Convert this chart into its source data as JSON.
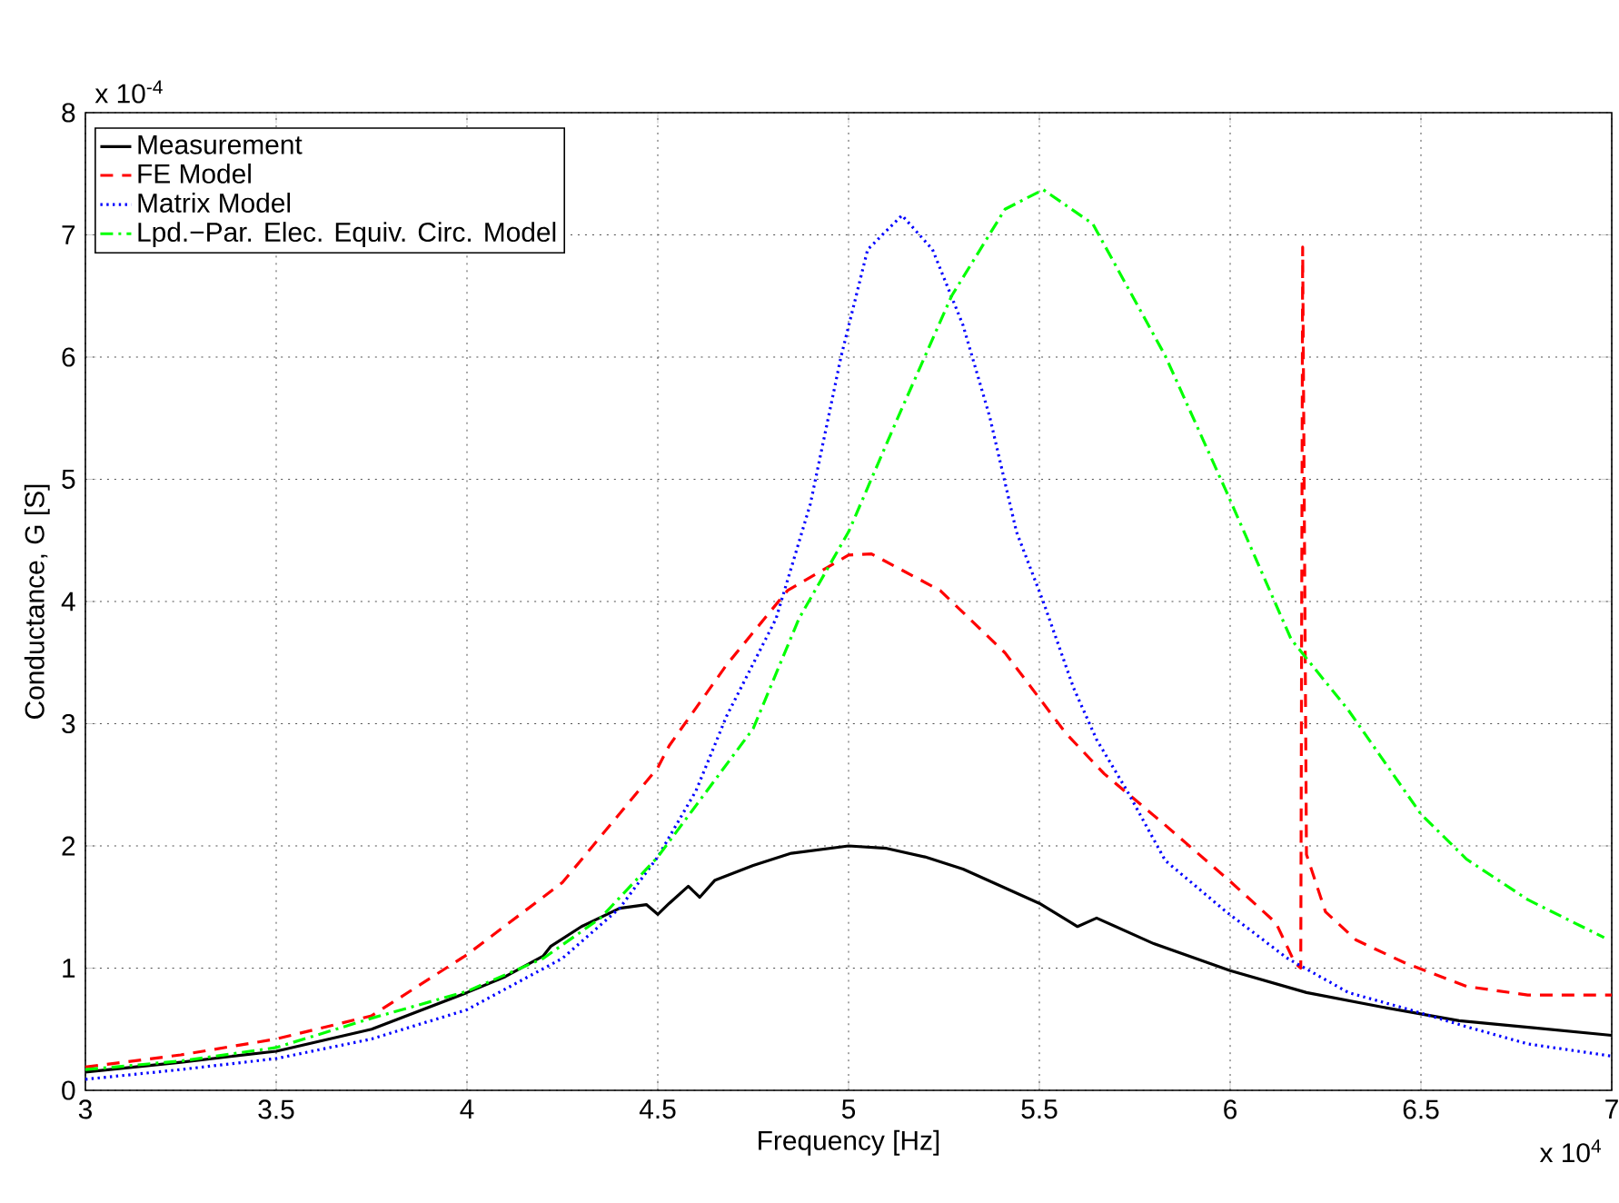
{
  "chart_data": {
    "type": "line",
    "xlabel": "Frequency [Hz]",
    "ylabel": "Conductance, G [S]",
    "annotations": [
      "x 10$^{-4}$",
      "x 10$^{4}$"
    ],
    "xlim": [
      3,
      7
    ],
    "ylim": [
      0,
      8
    ],
    "xticks": [
      3,
      3.5,
      4,
      4.5,
      5,
      5.5,
      6,
      6.5,
      7
    ],
    "yticks": [
      0,
      1,
      2,
      3,
      4,
      5,
      6,
      7,
      8
    ],
    "grid": true,
    "legend": "top left",
    "marker": "none",
    "series": [
      {
        "name": "Measurement",
        "color": "#000000",
        "line_style": "solid",
        "x": [
          3.0,
          3.25,
          3.5,
          3.75,
          4.0,
          4.1,
          4.2,
          4.22,
          4.3,
          4.4,
          4.47,
          4.5,
          4.53,
          4.58,
          4.61,
          4.65,
          4.75,
          4.85,
          5.0,
          5.1,
          5.2,
          5.3,
          5.4,
          5.5,
          5.6,
          5.65,
          5.8,
          6.0,
          6.2,
          6.4,
          6.6,
          6.8,
          7.0
        ],
        "values": [
          0.15,
          0.23,
          0.32,
          0.5,
          0.8,
          0.93,
          1.1,
          1.18,
          1.34,
          1.49,
          1.52,
          1.44,
          1.53,
          1.67,
          1.58,
          1.72,
          1.84,
          1.94,
          2.0,
          1.98,
          1.91,
          1.81,
          1.67,
          1.53,
          1.34,
          1.41,
          1.2,
          0.98,
          0.8,
          0.68,
          0.57,
          0.51,
          0.45
        ]
      },
      {
        "name": "FE Model",
        "color": "#ff0000",
        "line_style": "dashed",
        "x": [
          3.0,
          3.25,
          3.5,
          3.75,
          4.0,
          4.25,
          4.5,
          4.53,
          4.68,
          4.84,
          5.0,
          5.06,
          5.24,
          5.41,
          5.57,
          5.67,
          5.83,
          6.0,
          6.12,
          6.17,
          6.185,
          6.19,
          6.2,
          6.25,
          6.33,
          6.46,
          6.62,
          6.78,
          7.0
        ],
        "values": [
          0.19,
          0.29,
          0.42,
          0.61,
          1.11,
          1.7,
          2.64,
          2.82,
          3.48,
          4.09,
          4.38,
          4.39,
          4.09,
          3.58,
          2.92,
          2.59,
          2.17,
          1.71,
          1.37,
          1.04,
          1.0,
          6.9,
          1.93,
          1.46,
          1.23,
          1.04,
          0.85,
          0.78,
          0.78
        ]
      },
      {
        "name": "Matrix Model",
        "color": "#0000ff",
        "line_style": "dotted",
        "x": [
          3.0,
          3.25,
          3.5,
          3.75,
          4.0,
          4.25,
          4.4,
          4.5,
          4.6,
          4.68,
          4.81,
          4.9,
          4.98,
          5.05,
          5.14,
          5.22,
          5.3,
          5.37,
          5.44,
          5.51,
          5.59,
          5.65,
          5.73,
          5.83,
          5.99,
          6.15,
          6.31,
          6.47,
          6.62,
          6.78,
          7.0
        ],
        "values": [
          0.09,
          0.17,
          0.26,
          0.42,
          0.66,
          1.08,
          1.49,
          1.91,
          2.45,
          3.06,
          3.86,
          4.8,
          6.0,
          6.88,
          7.16,
          6.88,
          6.26,
          5.51,
          4.57,
          4.0,
          3.29,
          2.87,
          2.45,
          1.88,
          1.46,
          1.08,
          0.8,
          0.66,
          0.52,
          0.38,
          0.28
        ]
      },
      {
        "name": "Lpd.−Par. Elec. Equiv. Circ. Model",
        "color": "#00ff00",
        "line_style": "dashdot",
        "x": [
          3.0,
          3.25,
          3.5,
          3.75,
          4.0,
          4.2,
          4.35,
          4.5,
          4.6,
          4.75,
          4.87,
          5.0,
          5.13,
          5.27,
          5.41,
          5.51,
          5.64,
          5.83,
          5.99,
          6.16,
          6.31,
          6.5,
          6.62,
          6.78,
          6.98
        ],
        "values": [
          0.17,
          0.24,
          0.35,
          0.59,
          0.81,
          1.08,
          1.41,
          1.91,
          2.33,
          2.96,
          3.86,
          4.57,
          5.51,
          6.5,
          7.21,
          7.37,
          7.09,
          6.01,
          4.9,
          3.69,
          3.11,
          2.26,
          1.89,
          1.56,
          1.25
        ]
      }
    ]
  }
}
